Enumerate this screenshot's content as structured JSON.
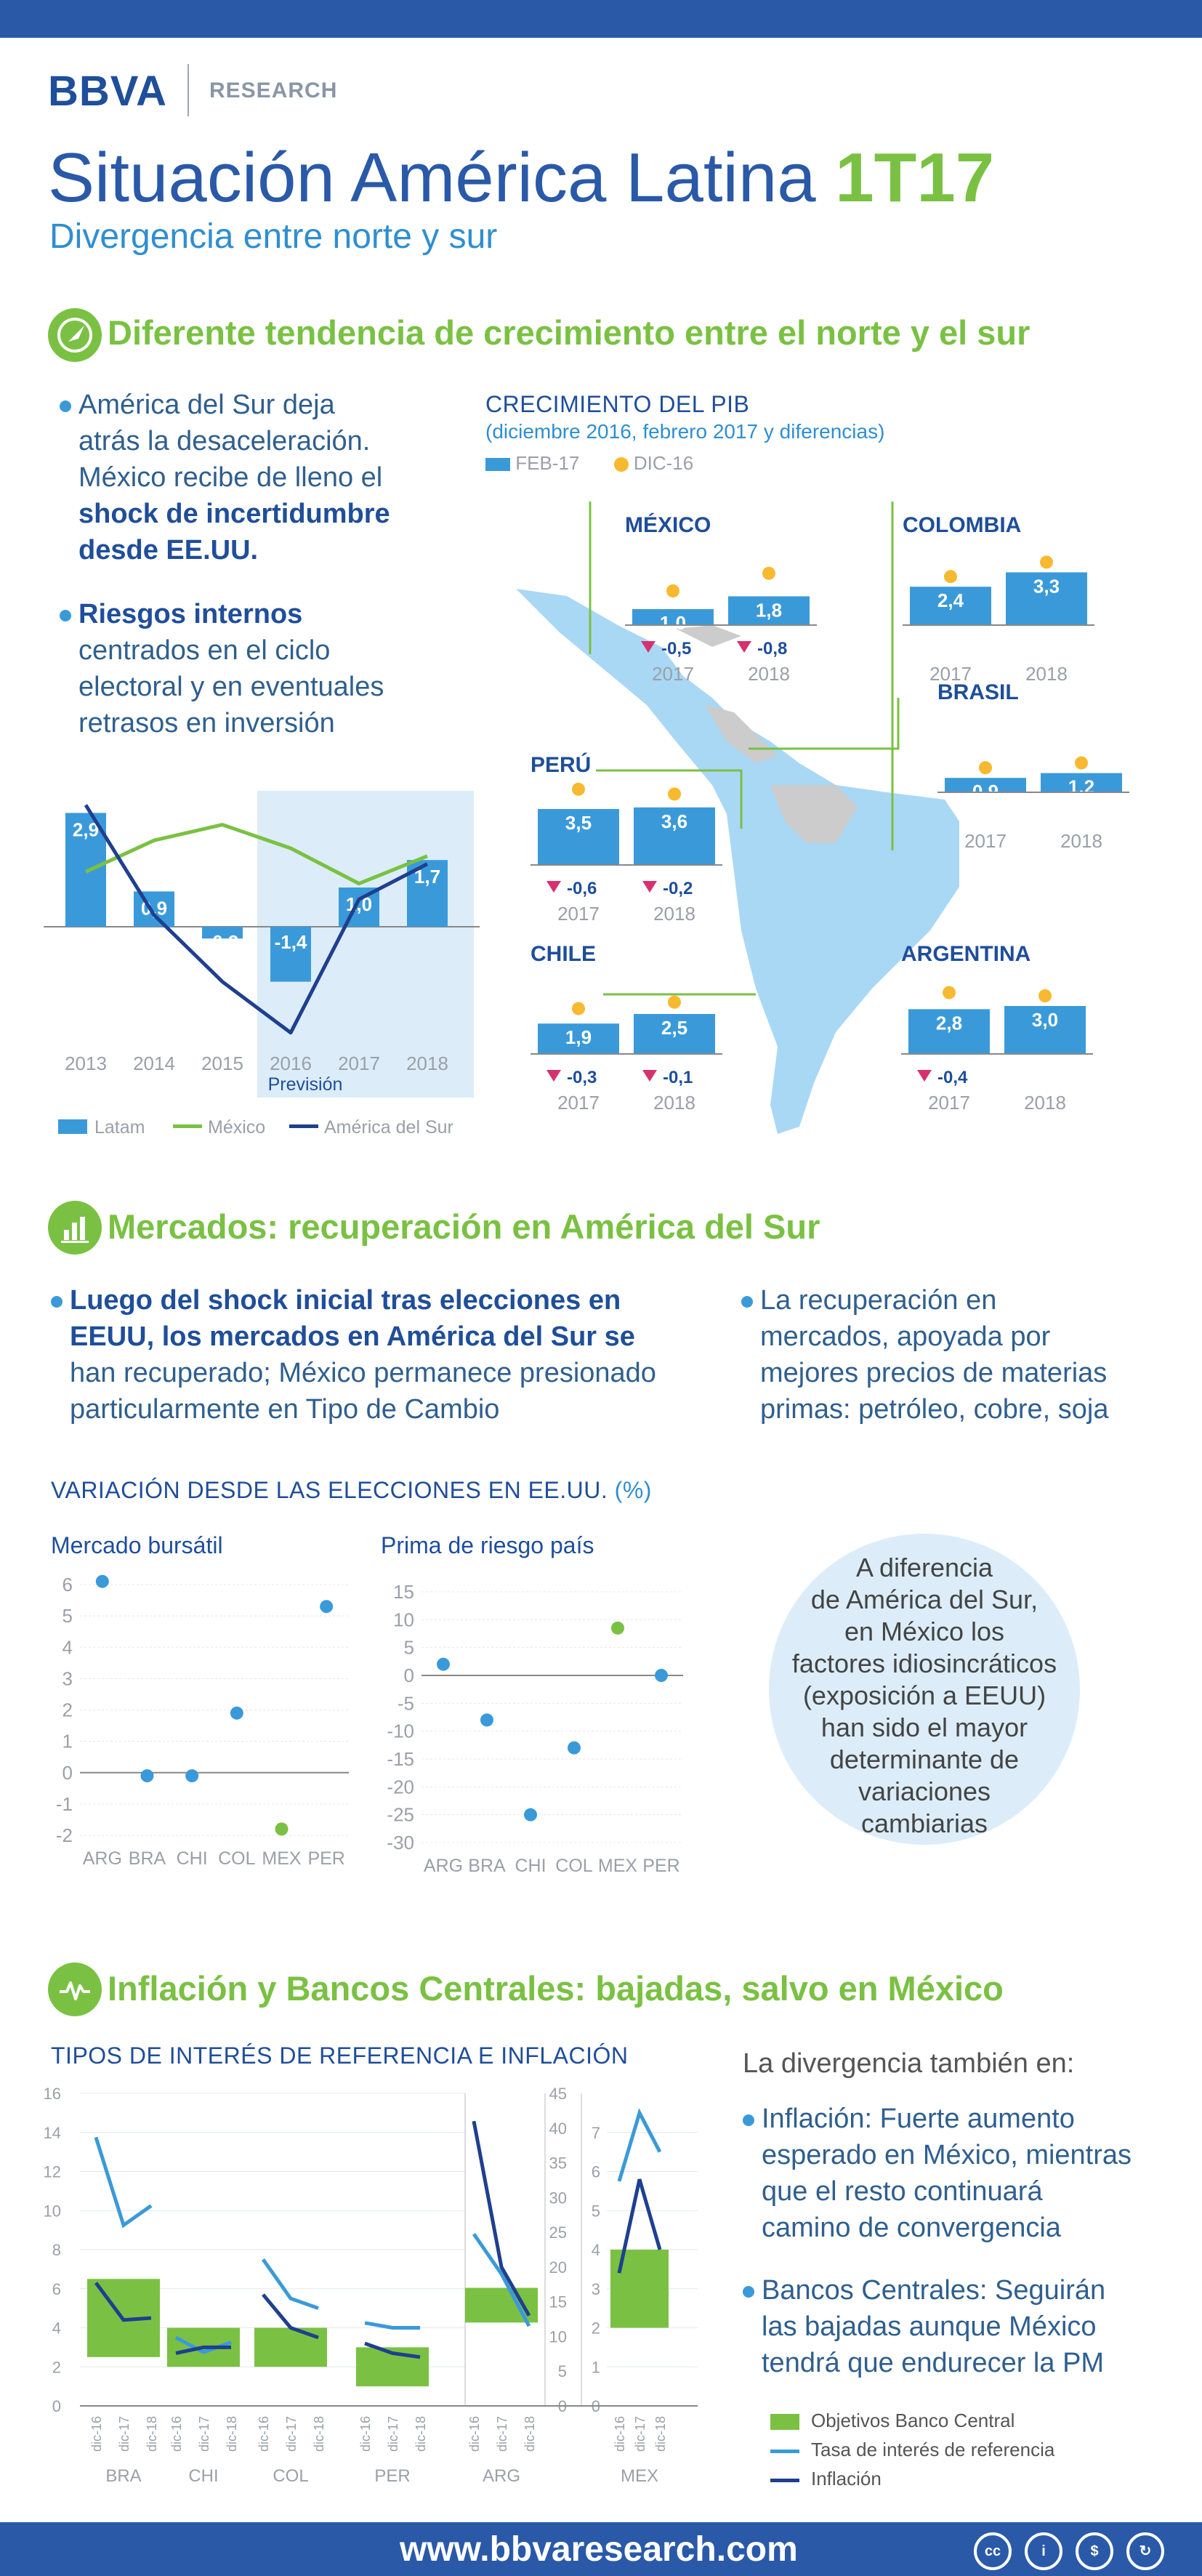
{
  "brand": {
    "name": "BBVA",
    "division": "RESEARCH"
  },
  "header": {
    "title_main": "Situación América Latina",
    "title_period": "1T17",
    "subtitle": "Divergencia entre norte y sur"
  },
  "colors": {
    "blue_dark": "#1f4e9a",
    "blue_bar": "#3a9ad9",
    "green": "#7ac143",
    "yellow": "#f7b92f",
    "red_down": "#d6316f",
    "map_blue": "#a9d8f5",
    "map_gray": "#cccccc"
  },
  "section1": {
    "icon": "compass-icon",
    "title": "Diferente tendencia de crecimiento entre el norte y el sur",
    "bullet1": [
      "América del Sur deja",
      "atrás la desaceleración.",
      "México recibe de lleno el",
      "shock de incertidumbre",
      "desde EE.UU."
    ],
    "bullet2": [
      "Riesgos internos",
      "centrados en el ciclo",
      "electoral y en eventuales",
      "retrasos en inversión"
    ]
  },
  "section2": {
    "icon": "bar-chart-icon",
    "title": "Mercados: recuperación en América del Sur",
    "bullet1": [
      "Luego del shock inicial tras elecciones en",
      "EEUU, los mercados en América del Sur se",
      "han recuperado; México permanece presionado",
      "particularmente en Tipo de Cambio"
    ],
    "bullet2": [
      "La recuperación en",
      "mercados, apoyada por",
      "mejores precios de materias",
      "primas: petróleo, cobre, soja"
    ],
    "chart_heading": "VARIACIÓN DESDE LAS ELECCIONES EN EE.UU.",
    "chart_heading_unit": "(%)",
    "bubble": [
      "A diferencia",
      "de América del Sur,",
      "en México los",
      "factores idiosincráticos",
      "(exposición a EEUU)",
      "han sido el mayor",
      "determinante de",
      "variaciones",
      "cambiarias"
    ]
  },
  "section3": {
    "icon": "pulse-icon",
    "title": "Inflación y Bancos Centrales: bajadas, salvo en México",
    "chart_heading": "TIPOS DE INTERÉS DE REFERENCIA E INFLACIÓN",
    "intro": "La divergencia también en:",
    "bullet1": [
      "Inflación: Fuerte aumento",
      "esperado en México, mientras",
      "que el resto continuará",
      "camino de convergencia"
    ],
    "bullet2": [
      "Bancos Centrales: Seguirán",
      "las bajadas aunque México",
      "tendrá que endurecer la PM"
    ]
  },
  "footer": {
    "url": "www.bbvaresearch.com",
    "license_icons": [
      "cc-icon",
      "by-icon",
      "nc-icon",
      "sa-icon"
    ]
  },
  "chart_data": [
    {
      "id": "gdp_latam",
      "type": "bar",
      "categories": [
        "2013",
        "2014",
        "2015",
        "2016",
        "2017",
        "2018"
      ],
      "series": [
        {
          "name": "Latam",
          "type": "bar",
          "values": [
            2.9,
            0.9,
            -0.3,
            -1.4,
            1.0,
            1.7
          ],
          "labels": [
            "2,9",
            "0,9",
            "-0,3",
            "-1,4",
            "1,0",
            "1,7"
          ]
        },
        {
          "name": "México",
          "type": "line",
          "values": [
            1.4,
            2.2,
            2.6,
            2.0,
            1.1,
            1.8
          ]
        },
        {
          "name": "América del Sur",
          "type": "line",
          "values": [
            3.1,
            0.3,
            -1.4,
            -2.7,
            0.7,
            1.6
          ]
        }
      ],
      "forecast_label": "Previsión",
      "forecast_from": "2016",
      "ylim": [
        -3,
        3.5
      ]
    },
    {
      "id": "gdp_by_country",
      "type": "bar",
      "title": "CRECIMIENTO DEL PIB",
      "subtitle": "(diciembre 2016, febrero 2017 y diferencias)",
      "legend": [
        "FEB-17",
        "DIC-16"
      ],
      "countries": [
        {
          "name": "MÉXICO",
          "years": [
            "2017",
            "2018"
          ],
          "feb17": [
            1.0,
            1.8
          ],
          "feb17_labels": [
            "1,0",
            "1,8"
          ],
          "dic16": [
            1.5,
            2.6
          ],
          "diff": [
            "-0,5",
            "-0,8"
          ]
        },
        {
          "name": "COLOMBIA",
          "years": [
            "2017",
            "2018"
          ],
          "feb17": [
            2.4,
            3.3
          ],
          "feb17_labels": [
            "2,4",
            "3,3"
          ],
          "dic16": [
            2.4,
            3.3
          ],
          "diff": [
            "",
            ""
          ]
        },
        {
          "name": "BRASIL",
          "years": [
            "2017",
            "2018"
          ],
          "feb17": [
            0.9,
            1.2
          ],
          "feb17_labels": [
            "0,9",
            "1,2"
          ],
          "dic16": [
            0.9,
            1.2
          ],
          "diff": [
            "",
            ""
          ]
        },
        {
          "name": "PERÚ",
          "years": [
            "2017",
            "2018"
          ],
          "feb17": [
            3.5,
            3.6
          ],
          "feb17_labels": [
            "3,5",
            "3,6"
          ],
          "dic16": [
            4.1,
            3.8
          ],
          "diff": [
            "-0,6",
            "-0,2"
          ]
        },
        {
          "name": "CHILE",
          "years": [
            "2017",
            "2018"
          ],
          "feb17": [
            1.9,
            2.5
          ],
          "feb17_labels": [
            "1,9",
            "2,5"
          ],
          "dic16": [
            2.2,
            2.6
          ],
          "diff": [
            "-0,3",
            "-0,1"
          ]
        },
        {
          "name": "ARGENTINA",
          "years": [
            "2017",
            "2018"
          ],
          "feb17": [
            2.8,
            3.0
          ],
          "feb17_labels": [
            "2,8",
            "3,0"
          ],
          "dic16": [
            3.2,
            3.0
          ],
          "diff": [
            "-0,4",
            ""
          ]
        }
      ]
    },
    {
      "id": "stock_market",
      "type": "scatter",
      "title": "Mercado bursátil",
      "categories": [
        "ARG",
        "BRA",
        "CHI",
        "COL",
        "MEX",
        "PER"
      ],
      "values": [
        6.1,
        -0.1,
        -0.1,
        1.9,
        -1.8,
        5.3
      ],
      "highlight": "MEX",
      "ylim": [
        -2,
        6
      ],
      "yticks": [
        6,
        5,
        4,
        3,
        2,
        1,
        0,
        -1,
        -2
      ]
    },
    {
      "id": "country_risk",
      "type": "scatter",
      "title": "Prima de riesgo país",
      "categories": [
        "ARG",
        "BRA",
        "CHI",
        "COL",
        "MEX",
        "PER"
      ],
      "values": [
        2,
        -8,
        -25,
        -13,
        8.5,
        0
      ],
      "highlight": "MEX",
      "ylim": [
        -30,
        15
      ],
      "yticks": [
        15,
        10,
        5,
        0,
        -5,
        -10,
        -15,
        -20,
        -25,
        -30
      ]
    },
    {
      "id": "rates_inflation",
      "type": "bar",
      "title": "TIPOS DE INTERÉS DE REFERENCIA E INFLACIÓN",
      "periods": [
        "dic-16",
        "dic-17",
        "dic-18"
      ],
      "groups": [
        {
          "name": "BRA",
          "target": [
            2.5,
            6.5
          ],
          "rate": [
            13.75,
            9.25,
            10.25
          ],
          "inflation": [
            6.3,
            4.4,
            4.5
          ]
        },
        {
          "name": "CHI",
          "target": [
            2,
            4
          ],
          "rate": [
            3.5,
            2.75,
            3.25
          ],
          "inflation": [
            2.7,
            3.0,
            3.0
          ]
        },
        {
          "name": "COL",
          "target": [
            2,
            4
          ],
          "rate": [
            7.5,
            5.5,
            5.0
          ],
          "inflation": [
            5.7,
            4.0,
            3.5
          ]
        },
        {
          "name": "PER",
          "target": [
            1,
            3
          ],
          "rate": [
            4.25,
            4.0,
            4.0
          ],
          "inflation": [
            3.2,
            2.7,
            2.5
          ]
        },
        {
          "name": "ARG",
          "axis_note": "(dcha)",
          "target": [
            12,
            17
          ],
          "rate": [
            24.75,
            19.0,
            11.5
          ],
          "inflation": [
            41,
            20,
            13
          ]
        },
        {
          "name": "MEX",
          "target": [
            2,
            4
          ],
          "rate": [
            5.75,
            7.5,
            6.5
          ],
          "inflation": [
            3.4,
            5.8,
            4.0
          ]
        }
      ],
      "left_axis": {
        "ylim": [
          0,
          16
        ],
        "ticks": [
          0,
          2,
          4,
          6,
          8,
          10,
          12,
          14,
          16
        ]
      },
      "right_axis": {
        "ylim": [
          0,
          45
        ],
        "ticks": [
          0,
          5,
          10,
          15,
          20,
          25,
          30,
          35,
          40,
          45
        ]
      },
      "mex_axis": {
        "ylim": [
          0,
          8
        ],
        "ticks": [
          0,
          1,
          2,
          3,
          4,
          5,
          6,
          7
        ]
      },
      "legend": [
        "Objetivos Banco Central",
        "Tasa de interés de referencia",
        "Inflación"
      ]
    }
  ]
}
